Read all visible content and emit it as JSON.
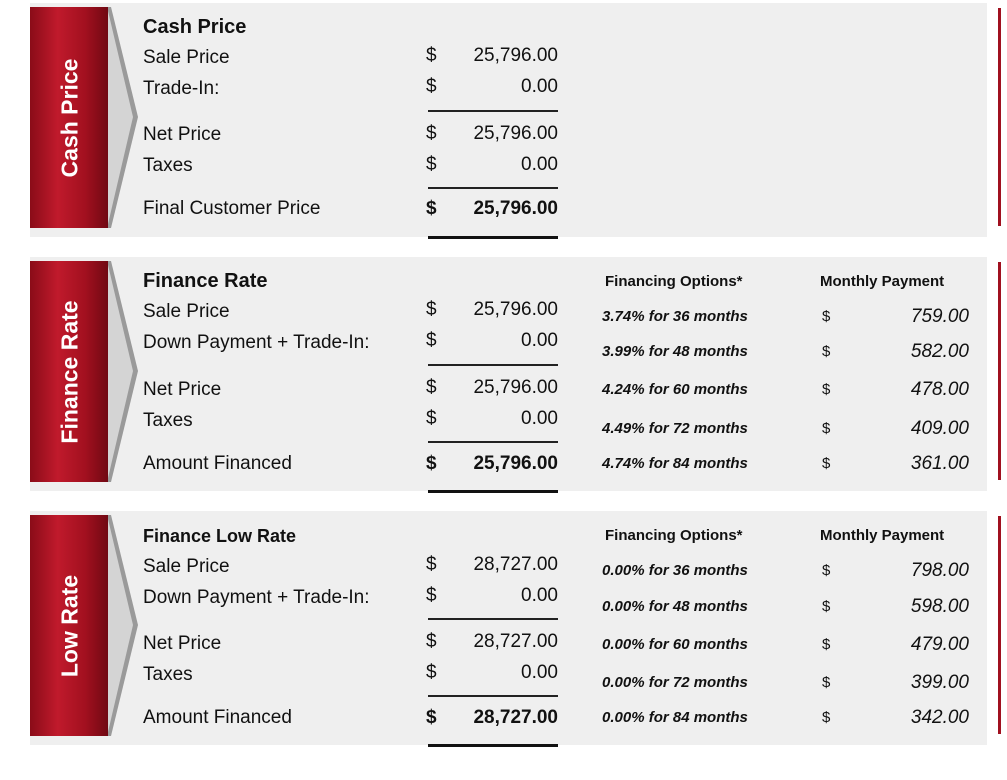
{
  "cash": {
    "tab": "Cash Price",
    "heading": "Cash Price",
    "rows": [
      {
        "label": "Sale Price",
        "currency": "$",
        "amount": "25,796.00"
      },
      {
        "label": "Trade-In:",
        "currency": "$",
        "amount": "0.00"
      },
      {
        "label": "Net Price",
        "currency": "$",
        "amount": "25,796.00"
      },
      {
        "label": "Taxes",
        "currency": "$",
        "amount": "0.00"
      },
      {
        "label": "Final Customer Price",
        "currency": "$",
        "amount": "25,796.00"
      }
    ]
  },
  "finance": {
    "tab": "Finance Rate",
    "heading": "Finance Rate",
    "options_header": "Financing Options*",
    "payment_header": "Monthly Payment",
    "rows": [
      {
        "label": "Sale Price",
        "currency": "$",
        "amount": "25,796.00"
      },
      {
        "label": "Down Payment + Trade-In:",
        "currency": "$",
        "amount": "0.00"
      },
      {
        "label": "Net Price",
        "currency": "$",
        "amount": "25,796.00"
      },
      {
        "label": "Taxes",
        "currency": "$",
        "amount": "0.00"
      },
      {
        "label": "Amount Financed",
        "currency": "$",
        "amount": "25,796.00"
      }
    ],
    "options": [
      {
        "option": "3.74% for 36 months",
        "currency": "$",
        "payment": "759.00"
      },
      {
        "option": "3.99% for 48 months",
        "currency": "$",
        "payment": "582.00"
      },
      {
        "option": "4.24% for 60 months",
        "currency": "$",
        "payment": "478.00"
      },
      {
        "option": "4.49% for 72 months",
        "currency": "$",
        "payment": "409.00"
      },
      {
        "option": "4.74% for 84 months",
        "currency": "$",
        "payment": "361.00"
      }
    ]
  },
  "low": {
    "tab": "Low Rate",
    "heading": "Finance Low Rate",
    "options_header": "Financing Options*",
    "payment_header": "Monthly Payment",
    "rows": [
      {
        "label": "Sale Price",
        "currency": "$",
        "amount": "28,727.00"
      },
      {
        "label": "Down Payment + Trade-In:",
        "currency": "$",
        "amount": "0.00"
      },
      {
        "label": "Net Price",
        "currency": "$",
        "amount": "28,727.00"
      },
      {
        "label": "Taxes",
        "currency": "$",
        "amount": "0.00"
      },
      {
        "label": "Amount Financed",
        "currency": "$",
        "amount": "28,727.00"
      }
    ],
    "options": [
      {
        "option": "0.00% for 36 months",
        "currency": "$",
        "payment": "798.00"
      },
      {
        "option": "0.00% for 48 months",
        "currency": "$",
        "payment": "598.00"
      },
      {
        "option": "0.00% for 60 months",
        "currency": "$",
        "payment": "479.00"
      },
      {
        "option": "0.00% for 72 months",
        "currency": "$",
        "payment": "399.00"
      },
      {
        "option": "0.00% for 84 months",
        "currency": "$",
        "payment": "342.00"
      }
    ]
  },
  "colors": {
    "accent": "#a0101f",
    "panel": "#efefef"
  }
}
